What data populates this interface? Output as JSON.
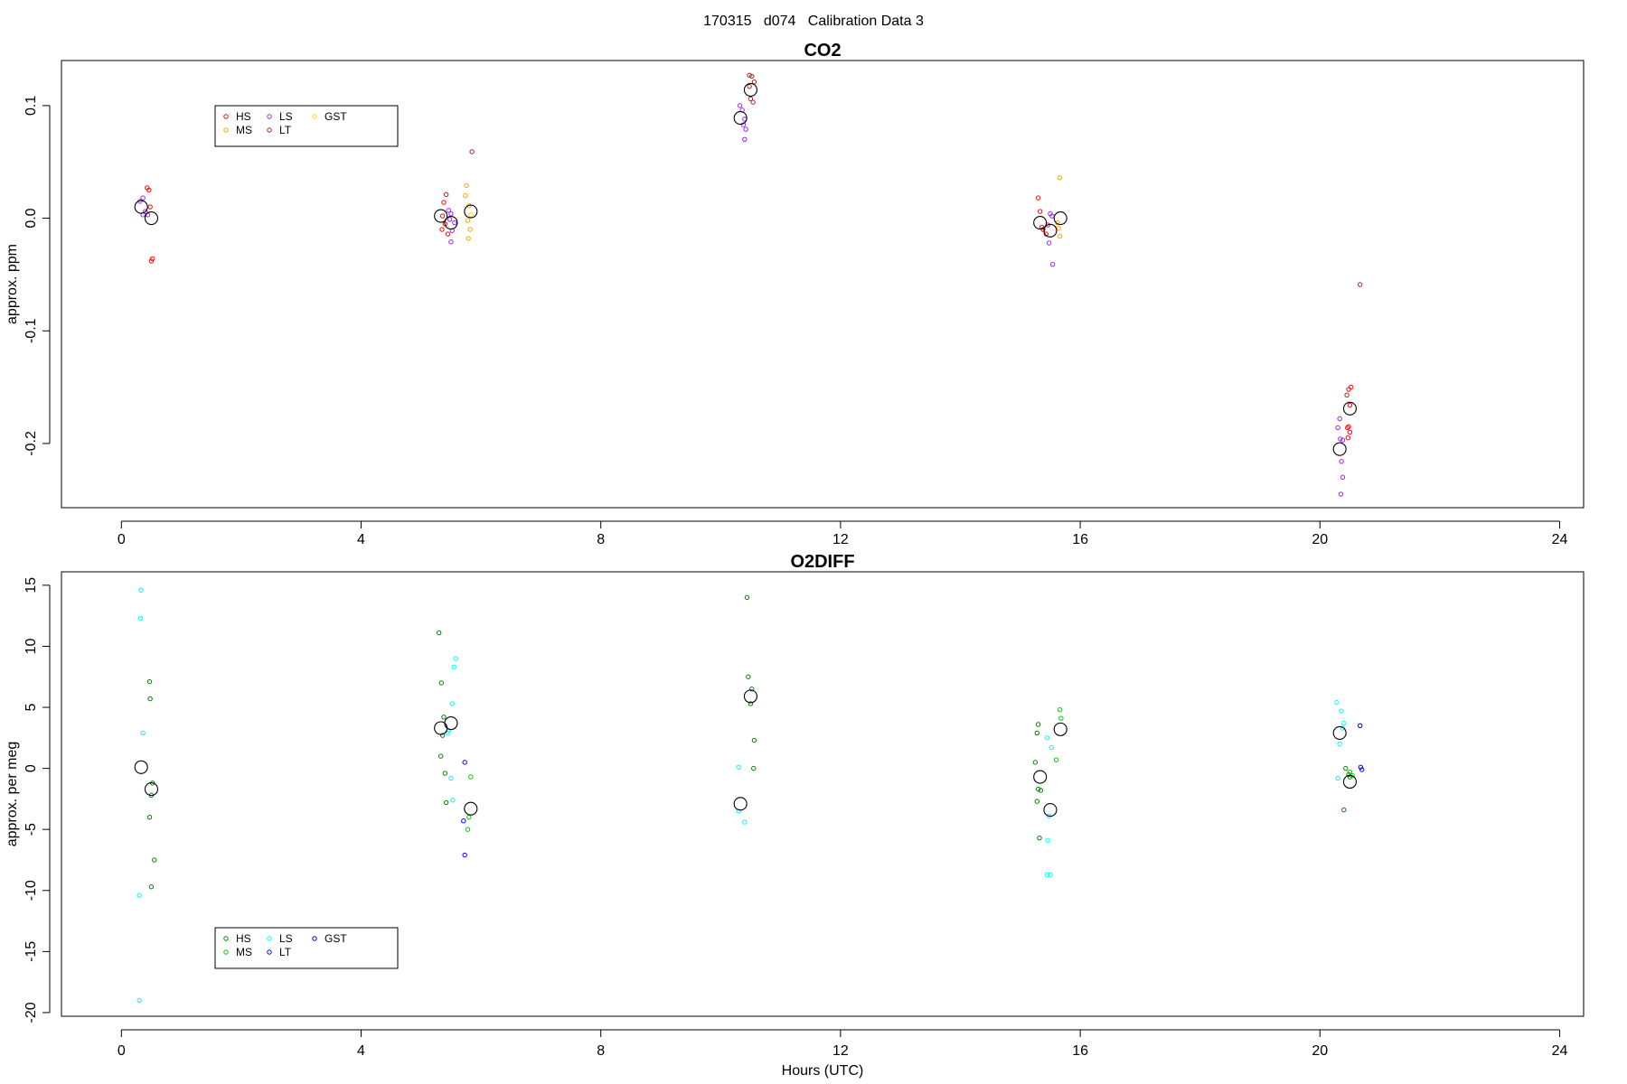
{
  "figure_title": "170315   d074   Calibration Data 3",
  "xlabel_bottom": "Hours (UTC)",
  "colors": {
    "HS": "#ff0000",
    "MS": "#ffa500",
    "LS": "#a020f0",
    "LT": "#b22222",
    "GST": "#ffd700",
    "mean": "#000000",
    "HS2": "#008000",
    "MS2": "#00cc00",
    "LS2": "#00ffff",
    "LT2": "#0000ff",
    "GST2": "#0000aa"
  },
  "chart_data": [
    {
      "type": "scatter",
      "title": "CO2",
      "xlabel": "",
      "ylabel": "approx. ppm",
      "xlim": [
        -1,
        24.4
      ],
      "ylim": [
        -0.257,
        0.14
      ],
      "xticks": [
        "0",
        "4",
        "8",
        "12",
        "16",
        "20",
        "24"
      ],
      "yticks": [
        "-0.2",
        "-0.1",
        "0.0",
        "0.1"
      ],
      "legend": {
        "placement": "top-left",
        "entries": [
          {
            "name": "HS",
            "color": "#ff0000"
          },
          {
            "name": "LS",
            "color": "#a020f0"
          },
          {
            "name": "GST",
            "color": "#ffd700"
          },
          {
            "name": "MS",
            "color": "#ffa500"
          },
          {
            "name": "LT",
            "color": "#b22222"
          }
        ]
      },
      "series": [
        {
          "name": "HS",
          "color": "#ff0000",
          "points": [
            [
              0.43,
              0.027
            ],
            [
              0.46,
              0.025
            ],
            [
              0.48,
              0.01
            ],
            [
              0.52,
              -0.036
            ],
            [
              0.5,
              -0.038
            ],
            [
              5.38,
              0.014
            ],
            [
              5.42,
              0.021
            ],
            [
              5.36,
              0.002
            ],
            [
              5.4,
              -0.005
            ],
            [
              5.35,
              -0.01
            ],
            [
              5.45,
              -0.014
            ],
            [
              15.3,
              0.018
            ],
            [
              15.33,
              0.006
            ],
            [
              15.36,
              -0.008
            ],
            [
              15.38,
              -0.01
            ],
            [
              15.43,
              -0.014
            ],
            [
              20.45,
              -0.157
            ],
            [
              20.48,
              -0.152
            ],
            [
              20.52,
              -0.15
            ],
            [
              20.5,
              -0.166
            ],
            [
              20.48,
              -0.185
            ],
            [
              20.46,
              -0.186
            ],
            [
              20.5,
              -0.19
            ],
            [
              20.47,
              -0.195
            ]
          ]
        },
        {
          "name": "MS",
          "color": "#ffa500",
          "points": [
            [
              5.76,
              0.029
            ],
            [
              5.74,
              0.02
            ],
            [
              5.8,
              0.011
            ],
            [
              5.78,
              -0.002
            ],
            [
              5.82,
              -0.01
            ],
            [
              5.79,
              -0.018
            ],
            [
              15.66,
              0.036
            ],
            [
              15.62,
              -0.004
            ],
            [
              15.64,
              -0.009
            ],
            [
              15.66,
              -0.016
            ]
          ]
        },
        {
          "name": "LS",
          "color": "#a020f0",
          "points": [
            [
              0.31,
              0.015
            ],
            [
              0.36,
              0.018
            ],
            [
              0.4,
              0.006
            ],
            [
              0.44,
              0.003
            ],
            [
              0.36,
              0.003
            ],
            [
              5.46,
              0.007
            ],
            [
              5.5,
              0.004
            ],
            [
              5.48,
              -0.001
            ],
            [
              5.56,
              -0.004
            ],
            [
              5.52,
              -0.011
            ],
            [
              5.5,
              -0.021
            ],
            [
              10.32,
              0.1
            ],
            [
              10.36,
              0.096
            ],
            [
              10.4,
              0.088
            ],
            [
              10.38,
              0.083
            ],
            [
              10.42,
              0.079
            ],
            [
              10.4,
              0.07
            ],
            [
              15.5,
              0.004
            ],
            [
              15.53,
              0.002
            ],
            [
              15.46,
              -0.006
            ],
            [
              15.48,
              -0.022
            ],
            [
              15.54,
              -0.041
            ],
            [
              20.33,
              -0.178
            ],
            [
              20.3,
              -0.186
            ],
            [
              20.34,
              -0.196
            ],
            [
              20.38,
              -0.197
            ],
            [
              20.36,
              -0.216
            ],
            [
              20.38,
              -0.23
            ],
            [
              20.35,
              -0.245
            ]
          ]
        },
        {
          "name": "LT",
          "color": "#b22222",
          "points": [
            [
              5.85,
              0.059
            ],
            [
              10.48,
              0.127
            ],
            [
              10.52,
              0.126
            ],
            [
              10.56,
              0.121
            ],
            [
              10.48,
              0.117
            ],
            [
              10.5,
              0.106
            ],
            [
              10.54,
              0.103
            ],
            [
              20.67,
              -0.059
            ]
          ]
        },
        {
          "name": "GST",
          "color": "#ffd700",
          "points": [
            [
              5.83,
              0.003
            ]
          ]
        },
        {
          "name": "mean",
          "color": "#000000",
          "marker": "large-circle",
          "points": [
            [
              0.33,
              0.01
            ],
            [
              0.5,
              0.0
            ],
            [
              5.33,
              0.002
            ],
            [
              5.5,
              -0.004
            ],
            [
              5.83,
              0.006
            ],
            [
              10.33,
              0.089
            ],
            [
              10.5,
              0.114
            ],
            [
              15.33,
              -0.004
            ],
            [
              15.5,
              -0.011
            ],
            [
              15.67,
              0.0
            ],
            [
              20.33,
              -0.205
            ],
            [
              20.5,
              -0.169
            ]
          ]
        }
      ]
    },
    {
      "type": "scatter",
      "title": "O2DIFF",
      "xlabel": "Hours (UTC)",
      "ylabel": "approx. per meg",
      "xlim": [
        -1,
        24.4
      ],
      "ylim": [
        -20.3,
        16.1
      ],
      "xticks": [
        "0",
        "4",
        "8",
        "12",
        "16",
        "20",
        "24"
      ],
      "yticks": [
        "-20",
        "-15",
        "-10",
        "-5",
        "0",
        "5",
        "10",
        "15"
      ],
      "legend": {
        "placement": "bottom-left",
        "entries": [
          {
            "name": "HS",
            "color": "#008000"
          },
          {
            "name": "LS",
            "color": "#00ffff"
          },
          {
            "name": "GST",
            "color": "#0000aa"
          },
          {
            "name": "MS",
            "color": "#00cc00"
          },
          {
            "name": "LT",
            "color": "#0000ff"
          }
        ]
      },
      "series": [
        {
          "name": "HS",
          "color": "#008000",
          "points": [
            [
              0.47,
              7.1
            ],
            [
              0.48,
              5.7
            ],
            [
              0.52,
              -1.2
            ],
            [
              0.5,
              -2.2
            ],
            [
              0.47,
              -4.0
            ],
            [
              0.55,
              -7.5
            ],
            [
              0.5,
              -9.7
            ],
            [
              5.3,
              11.1
            ],
            [
              5.34,
              7.0
            ],
            [
              5.38,
              4.2
            ],
            [
              5.36,
              2.7
            ],
            [
              5.33,
              1.0
            ],
            [
              5.4,
              -0.4
            ],
            [
              5.42,
              -2.8
            ],
            [
              10.44,
              14.0
            ],
            [
              10.46,
              7.5
            ],
            [
              10.52,
              6.5
            ],
            [
              10.5,
              5.3
            ],
            [
              10.56,
              2.3
            ],
            [
              10.55,
              0.0
            ],
            [
              15.3,
              3.6
            ],
            [
              15.28,
              2.9
            ],
            [
              15.25,
              0.5
            ],
            [
              15.3,
              -1.7
            ],
            [
              15.34,
              -1.8
            ],
            [
              15.28,
              -2.7
            ],
            [
              15.32,
              -5.7
            ],
            [
              20.43,
              0.0
            ],
            [
              20.48,
              -0.5
            ],
            [
              20.5,
              -0.7
            ],
            [
              20.4,
              -3.4
            ]
          ]
        },
        {
          "name": "MS",
          "color": "#00cc00",
          "points": [
            [
              5.83,
              -0.7
            ],
            [
              5.8,
              -4.0
            ],
            [
              5.78,
              -5.0
            ],
            [
              15.66,
              4.8
            ],
            [
              15.68,
              4.1
            ],
            [
              15.6,
              0.7
            ],
            [
              20.5,
              -0.3
            ],
            [
              20.54,
              -0.6
            ]
          ]
        },
        {
          "name": "LS",
          "color": "#00ffff",
          "points": [
            [
              0.33,
              14.6
            ],
            [
              0.32,
              12.3
            ],
            [
              0.36,
              2.9
            ],
            [
              0.3,
              -10.4
            ],
            [
              0.3,
              -19.0
            ],
            [
              5.58,
              9.0
            ],
            [
              5.55,
              8.3
            ],
            [
              5.52,
              5.3
            ],
            [
              5.46,
              3.1
            ],
            [
              5.45,
              2.9
            ],
            [
              5.5,
              -0.8
            ],
            [
              5.53,
              -2.6
            ],
            [
              10.3,
              0.1
            ],
            [
              10.3,
              -3.5
            ],
            [
              10.4,
              -4.4
            ],
            [
              15.45,
              2.5
            ],
            [
              15.52,
              1.7
            ],
            [
              15.48,
              -3.9
            ],
            [
              15.46,
              -5.9
            ],
            [
              15.45,
              -8.7
            ],
            [
              15.5,
              -8.7
            ],
            [
              20.28,
              5.4
            ],
            [
              20.36,
              4.7
            ],
            [
              20.4,
              3.7
            ],
            [
              20.38,
              3.3
            ],
            [
              20.33,
              2.0
            ],
            [
              20.3,
              -0.8
            ]
          ]
        },
        {
          "name": "LT",
          "color": "#0000ff",
          "points": [
            [
              5.73,
              0.5
            ],
            [
              5.71,
              -4.3
            ],
            [
              5.73,
              -7.1
            ],
            [
              20.68,
              0.1
            ],
            [
              20.7,
              -0.1
            ]
          ]
        },
        {
          "name": "GST",
          "color": "#0000aa",
          "points": [
            [
              20.67,
              3.5
            ]
          ]
        },
        {
          "name": "mean",
          "color": "#000000",
          "marker": "large-circle",
          "points": [
            [
              0.33,
              0.1
            ],
            [
              0.5,
              -1.7
            ],
            [
              5.33,
              3.3
            ],
            [
              5.5,
              3.7
            ],
            [
              5.83,
              -3.3
            ],
            [
              10.33,
              -2.9
            ],
            [
              10.5,
              5.9
            ],
            [
              15.33,
              -0.7
            ],
            [
              15.5,
              -3.4
            ],
            [
              15.67,
              3.2
            ],
            [
              20.33,
              2.9
            ],
            [
              20.5,
              -1.1
            ]
          ]
        }
      ]
    }
  ]
}
